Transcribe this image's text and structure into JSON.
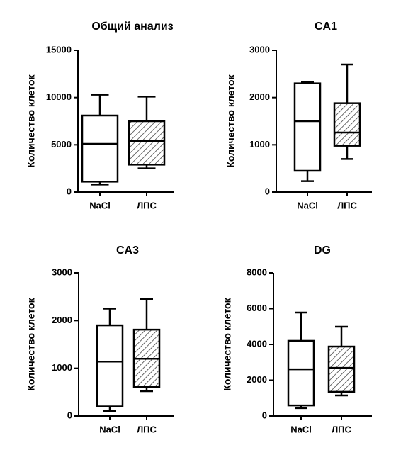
{
  "chart_data": [
    {
      "type": "box",
      "title": "Общий анализ",
      "y_label": "Количество клеток",
      "categories": [
        "NaCl",
        "ЛПС"
      ],
      "boxes": [
        {
          "min": 800,
          "q1": 1100,
          "median": 5100,
          "q3": 8100,
          "max": 10300
        },
        {
          "min": 2500,
          "q1": 2900,
          "median": 5400,
          "q3": 7500,
          "max": 10100
        }
      ],
      "hatch": [
        false,
        true
      ],
      "color": "#000000",
      "ylim": [
        0,
        15000
      ],
      "yticks": [
        0,
        5000,
        10000,
        15000
      ]
    },
    {
      "type": "box",
      "title": "CA1",
      "y_label": "Количество клеток",
      "categories": [
        "NaCl",
        "ЛПС"
      ],
      "boxes": [
        {
          "min": 230,
          "q1": 450,
          "median": 1500,
          "q3": 2300,
          "max": 2330
        },
        {
          "min": 700,
          "q1": 980,
          "median": 1260,
          "q3": 1880,
          "max": 2700
        }
      ],
      "hatch": [
        false,
        true
      ],
      "color": "#000000",
      "ylim": [
        0,
        3000
      ],
      "yticks": [
        0,
        1000,
        2000,
        3000
      ]
    },
    {
      "type": "box",
      "title": "CA3",
      "y_label": "Количество клеток",
      "categories": [
        "NaCl",
        "ЛПС"
      ],
      "boxes": [
        {
          "min": 100,
          "q1": 200,
          "median": 1140,
          "q3": 1900,
          "max": 2250
        },
        {
          "min": 520,
          "q1": 610,
          "median": 1200,
          "q3": 1810,
          "max": 2450
        }
      ],
      "hatch": [
        false,
        true
      ],
      "color": "#000000",
      "ylim": [
        0,
        3000
      ],
      "yticks": [
        0,
        1000,
        2000,
        3000
      ]
    },
    {
      "type": "box",
      "title": "DG",
      "y_label": "Количество клеток",
      "categories": [
        "NaCl",
        "ЛПС"
      ],
      "boxes": [
        {
          "min": 440,
          "q1": 590,
          "median": 2610,
          "q3": 4200,
          "max": 5780
        },
        {
          "min": 1150,
          "q1": 1350,
          "median": 2690,
          "q3": 3880,
          "max": 4990
        }
      ],
      "hatch": [
        false,
        true
      ],
      "color": "#000000",
      "ylim": [
        0,
        8000
      ],
      "yticks": [
        0,
        2000,
        4000,
        6000,
        8000
      ]
    }
  ]
}
